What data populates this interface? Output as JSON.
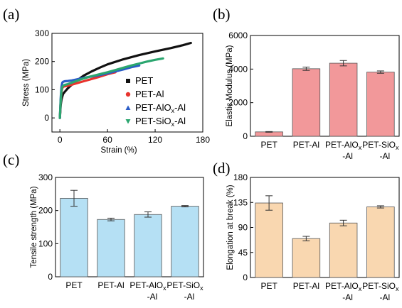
{
  "chart_data": [
    {
      "panel": "(a)",
      "type": "line",
      "xlabel": "Strain (%)",
      "ylabel": "Stress (MPa)",
      "xlim": [
        -10,
        180
      ],
      "ylim": [
        -50,
        300
      ],
      "xticks": [
        "0",
        "60",
        "120",
        "180"
      ],
      "yticks": [
        "0",
        "100",
        "200",
        "300"
      ],
      "legend_position": "right",
      "series": [
        {
          "name": "PET",
          "marker": "square",
          "color": "#111111",
          "x": [
            0,
            1,
            2,
            4,
            6,
            10,
            15,
            20,
            30,
            40,
            50,
            60,
            80,
            100,
            120,
            140,
            155,
            165
          ],
          "y": [
            0,
            45,
            65,
            85,
            92,
            105,
            118,
            130,
            150,
            165,
            178,
            190,
            208,
            223,
            236,
            248,
            258,
            266
          ]
        },
        {
          "name": "PET-Al",
          "name_main": "PET-Al",
          "name_sub": "",
          "name_tail": "",
          "marker": "circle",
          "color": "#e8332d",
          "x": [
            0,
            1,
            2,
            3,
            4,
            6,
            10,
            15,
            20,
            30,
            40,
            50,
            60,
            70
          ],
          "y": [
            0,
            60,
            90,
            105,
            110,
            112,
            114,
            118,
            122,
            130,
            138,
            146,
            155,
            162
          ]
        },
        {
          "name": "PET-AlOx-Al",
          "name_main": "PET-AlO",
          "name_sub": "x",
          "name_tail": "-Al",
          "marker": "triangle",
          "color": "#2a5cc7",
          "x": [
            0,
            1,
            2,
            3,
            4,
            6,
            10,
            15,
            20,
            30,
            40,
            50,
            60,
            70,
            80,
            90,
            100
          ],
          "y": [
            0,
            70,
            110,
            125,
            128,
            130,
            131,
            133,
            136,
            142,
            147,
            152,
            158,
            165,
            172,
            180,
            186
          ]
        },
        {
          "name": "PET-SiOx-Al",
          "name_main": "PET-SiO",
          "name_sub": "x",
          "name_tail": "-Al",
          "marker": "triangle-down",
          "color": "#2ba66f",
          "x": [
            0,
            1,
            2,
            3,
            4,
            6,
            10,
            15,
            20,
            30,
            40,
            50,
            60,
            70,
            80,
            90,
            100,
            110,
            120,
            130
          ],
          "y": [
            0,
            60,
            95,
            110,
            114,
            117,
            120,
            125,
            130,
            140,
            148,
            155,
            162,
            170,
            178,
            186,
            193,
            200,
            206,
            211
          ]
        }
      ]
    },
    {
      "panel": "(b)",
      "type": "bar",
      "ylabel": "Elastic Modulus (MPa)",
      "ylim": [
        0,
        6000
      ],
      "yticks": [
        "0",
        "2000",
        "4000",
        "6000"
      ],
      "bar_color": "#f2989a",
      "categories": [
        {
          "main": "PET",
          "sub": "",
          "tail": "",
          "line2": ""
        },
        {
          "main": "PET-Al",
          "sub": "",
          "tail": "",
          "line2": ""
        },
        {
          "main": "PET-AlO",
          "sub": "x",
          "tail": "",
          "line2": "-Al"
        },
        {
          "main": "PET-SiO",
          "sub": "x",
          "tail": "",
          "line2": "-Al"
        }
      ],
      "values": [
        260,
        4020,
        4350,
        3820
      ],
      "errors": [
        20,
        100,
        160,
        70
      ]
    },
    {
      "panel": "(c)",
      "type": "bar",
      "ylabel": "Tensile strength (MPa)",
      "ylim": [
        0,
        300
      ],
      "yticks": [
        "0",
        "100",
        "200",
        "300"
      ],
      "bar_color": "#b5e0f4",
      "categories": [
        {
          "main": "PET",
          "sub": "",
          "tail": "",
          "line2": ""
        },
        {
          "main": "PET-Al",
          "sub": "",
          "tail": "",
          "line2": ""
        },
        {
          "main": "PET-AlO",
          "sub": "x",
          "tail": "",
          "line2": "-Al"
        },
        {
          "main": "PET-SiO",
          "sub": "x",
          "tail": "",
          "line2": "-Al"
        }
      ],
      "values": [
        237,
        173,
        188,
        213
      ],
      "errors": [
        24,
        4,
        8,
        2
      ]
    },
    {
      "panel": "(d)",
      "type": "bar",
      "ylabel": "Elongation at break (%)",
      "ylim": [
        0,
        180
      ],
      "yticks": [
        "0",
        "45",
        "90",
        "135",
        "180"
      ],
      "bar_color": "#f9d7b0",
      "categories": [
        {
          "main": "PET",
          "sub": "",
          "tail": "",
          "line2": ""
        },
        {
          "main": "PET-Al",
          "sub": "",
          "tail": "",
          "line2": ""
        },
        {
          "main": "PET-AlO",
          "sub": "x",
          "tail": "",
          "line2": "-Al"
        },
        {
          "main": "PET-SiO",
          "sub": "x",
          "tail": "",
          "line2": "-Al"
        }
      ],
      "values": [
        134,
        70,
        98,
        127
      ],
      "errors": [
        13,
        4,
        5,
        2
      ]
    }
  ]
}
